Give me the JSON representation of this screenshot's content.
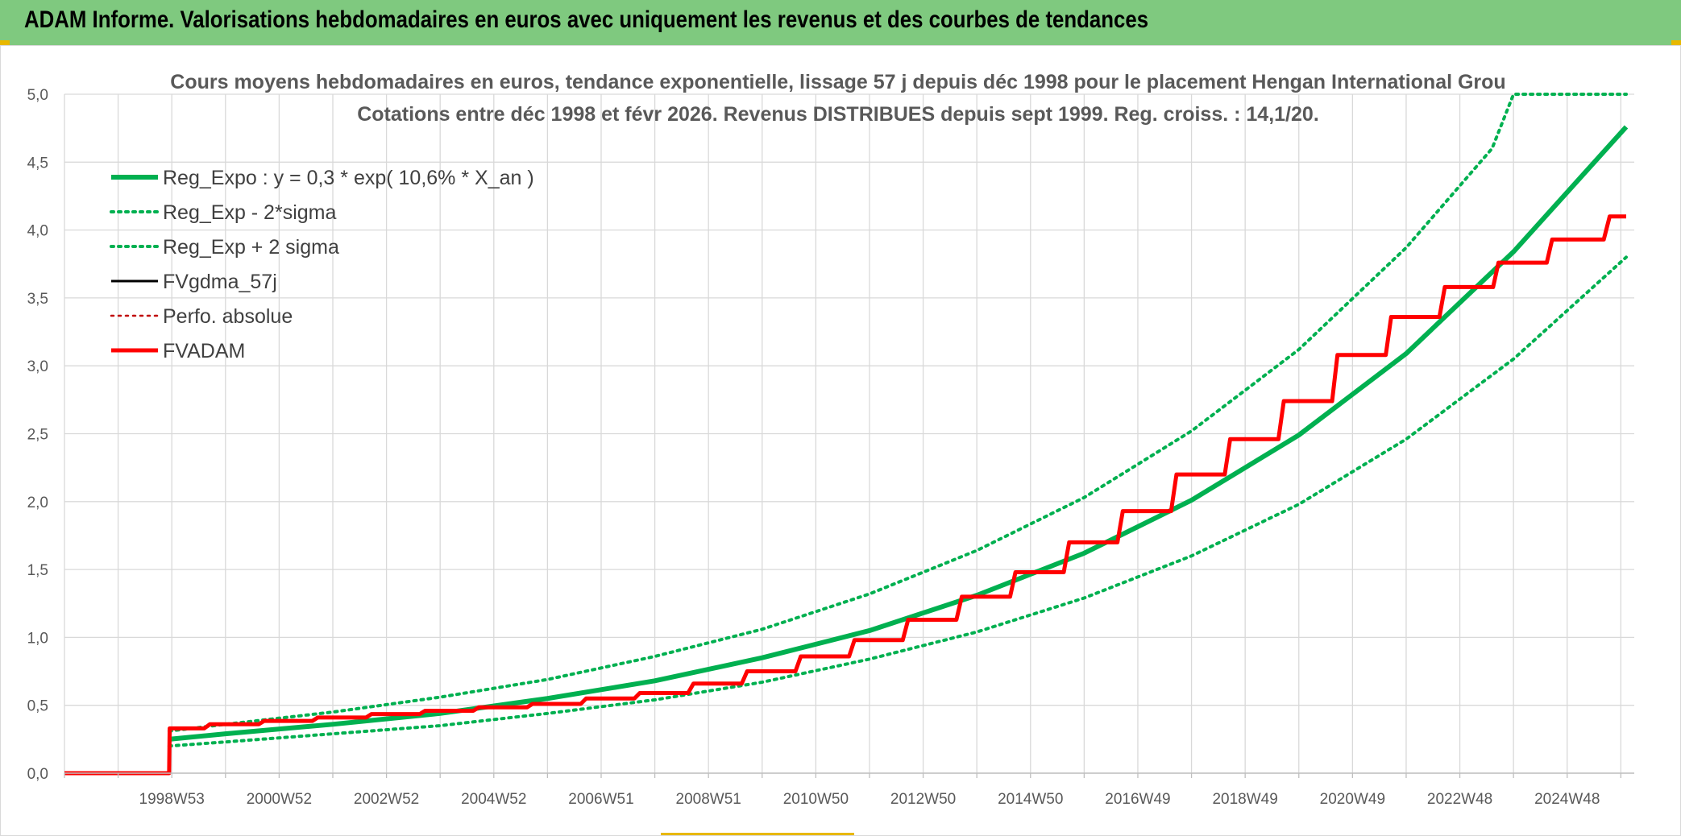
{
  "header": {
    "title": "ADAM Informe. Valorisations hebdomadaires en euros avec uniquement les revenus et des courbes de tendances",
    "background_color": "#7fc97f"
  },
  "chart_data": {
    "type": "line",
    "title": "Cours moyens hebdomadaires en euros, tendance exponentielle, lissage 57 j depuis déc 1998 pour le placement Hengan International Grou",
    "subtitle": "Cotations entre déc 1998 et févr 2026. Revenus DISTRIBUES depuis sept 1999. Reg. croiss. : 14,1/20.",
    "xlabel": "",
    "ylabel": "",
    "ylim": [
      0,
      5
    ],
    "xlim": [
      1997.0,
      2026.25
    ],
    "y_ticks": [
      "0,0",
      "0,5",
      "1,0",
      "1,5",
      "2,0",
      "2,5",
      "3,0",
      "3,5",
      "4,0",
      "4,5",
      "5,0"
    ],
    "x_ticks": [
      {
        "label": "1998W53",
        "x": 1999.0
      },
      {
        "label": "2000W52",
        "x": 2001.0
      },
      {
        "label": "2002W52",
        "x": 2003.0
      },
      {
        "label": "2004W52",
        "x": 2005.0
      },
      {
        "label": "2006W51",
        "x": 2007.0
      },
      {
        "label": "2008W51",
        "x": 2009.0
      },
      {
        "label": "2010W50",
        "x": 2011.0
      },
      {
        "label": "2012W50",
        "x": 2013.0
      },
      {
        "label": "2014W50",
        "x": 2015.0
      },
      {
        "label": "2016W49",
        "x": 2017.0
      },
      {
        "label": "2018W49",
        "x": 2019.0
      },
      {
        "label": "2020W49",
        "x": 2021.0
      },
      {
        "label": "2022W48",
        "x": 2023.0
      },
      {
        "label": "2024W48",
        "x": 2025.0
      }
    ],
    "grid": true,
    "legend_position": "top-left",
    "series": [
      {
        "name": "Reg_Expo : y = 0,3 * exp( 10,6% *  X_an )",
        "color": "#00b050",
        "style": "solid",
        "x": [
          1998.95,
          2000,
          2002,
          2004,
          2006,
          2008,
          2010,
          2012,
          2014,
          2016,
          2018,
          2020,
          2022,
          2024,
          2026.1
        ],
        "values": [
          0.25,
          0.29,
          0.36,
          0.44,
          0.55,
          0.68,
          0.85,
          1.05,
          1.31,
          1.62,
          2.01,
          2.49,
          3.09,
          3.84,
          4.76
        ]
      },
      {
        "name": "Reg_Exp - 2*sigma",
        "color": "#00b050",
        "style": "dotted",
        "x": [
          1998.95,
          2000,
          2002,
          2004,
          2006,
          2008,
          2010,
          2012,
          2014,
          2016,
          2018,
          2020,
          2022,
          2024,
          2026.1
        ],
        "values": [
          0.2,
          0.23,
          0.29,
          0.35,
          0.44,
          0.54,
          0.67,
          0.84,
          1.04,
          1.29,
          1.6,
          1.98,
          2.46,
          3.05,
          3.8
        ]
      },
      {
        "name": "Reg_Exp + 2 sigma",
        "color": "#00b050",
        "style": "dotted",
        "x": [
          1998.95,
          2000,
          2002,
          2004,
          2006,
          2008,
          2010,
          2012,
          2014,
          2016,
          2018,
          2020,
          2022,
          2023.6,
          2024,
          2026.1
        ],
        "values": [
          0.31,
          0.36,
          0.45,
          0.56,
          0.69,
          0.86,
          1.06,
          1.32,
          1.64,
          2.03,
          2.52,
          3.12,
          3.87,
          4.6,
          5.0,
          5.0
        ]
      },
      {
        "name": "FVgdma_57j",
        "color": "#000000",
        "style": "solid",
        "x": [
          1997.0,
          1998.95,
          1998.96,
          2000,
          2002,
          2004,
          2006,
          2008,
          2009,
          2010,
          2011,
          2012,
          2013,
          2014,
          2015,
          2016,
          2017,
          2018,
          2019,
          2020,
          2021,
          2022,
          2023,
          2024,
          2025,
          2026.1
        ],
        "values": [
          0.0,
          0.0,
          0.33,
          0.36,
          0.41,
          0.46,
          0.51,
          0.59,
          0.66,
          0.75,
          0.86,
          0.98,
          1.13,
          1.3,
          1.48,
          1.7,
          1.93,
          2.2,
          2.46,
          2.74,
          3.08,
          3.36,
          3.58,
          3.76,
          3.93,
          4.1
        ]
      },
      {
        "name": "Perfo. absolue",
        "color": "#c00000",
        "style": "dotted",
        "x": [],
        "values": []
      },
      {
        "name": "FVADAM",
        "color": "#ff0000",
        "style": "solid",
        "x": [
          1997.0,
          1998.95,
          1998.96,
          2000,
          2002,
          2004,
          2006,
          2008,
          2009,
          2010,
          2011,
          2012,
          2013,
          2014,
          2015,
          2016,
          2017,
          2018,
          2019,
          2020,
          2021,
          2022,
          2023,
          2024,
          2025,
          2026.1
        ],
        "values": [
          0.0,
          0.0,
          0.33,
          0.36,
          0.41,
          0.46,
          0.51,
          0.59,
          0.66,
          0.75,
          0.86,
          0.98,
          1.13,
          1.3,
          1.48,
          1.7,
          1.93,
          2.2,
          2.46,
          2.74,
          3.08,
          3.36,
          3.58,
          3.76,
          3.93,
          4.1
        ]
      }
    ]
  }
}
